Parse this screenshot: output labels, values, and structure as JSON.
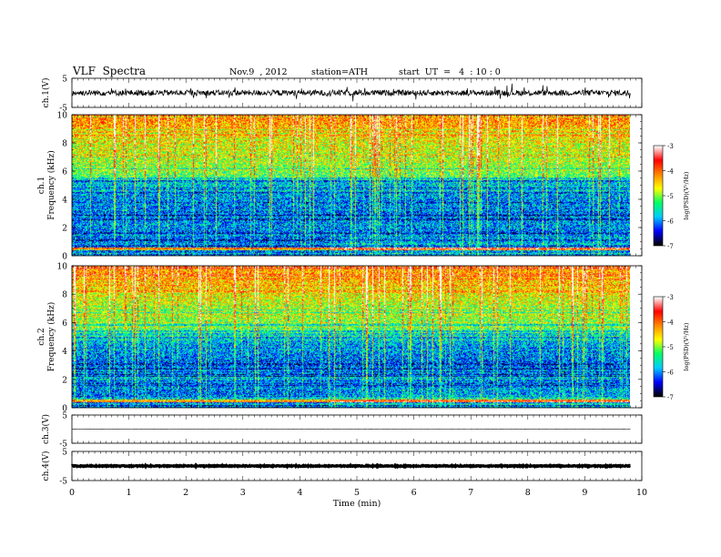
{
  "header": {
    "title": "VLF  Spectra",
    "date": "Nov.9  , 2012",
    "station": "station=ATH",
    "start": "start  UT  =   4  : 10 : 0"
  },
  "chart_data": [
    {
      "type": "line",
      "panel": "ch1-waveform",
      "ylabel": "ch.1(V)",
      "yticks": [
        "5",
        "-5"
      ],
      "ylim": [
        -5,
        5
      ],
      "xlim": [
        0,
        10
      ],
      "data_end_min": 9.8,
      "baseline": 0,
      "noise_amplitude": 1
    },
    {
      "type": "heatmap",
      "panel": "ch1-spectrogram",
      "ylabel": "ch.1",
      "ylabel2": "Frequency  (kHz)",
      "yticks": [
        "0",
        "2",
        "4",
        "6",
        "8",
        "10"
      ],
      "ylim": [
        0,
        10
      ],
      "xlim": [
        0,
        10
      ],
      "data_end_min": 9.8,
      "colorbar": {
        "label": "log(PSD)(V²/Hz)",
        "ticks": [
          "-3",
          "-4",
          "-5",
          "-6",
          "-7"
        ],
        "range": [
          -7,
          -3
        ],
        "colors": [
          "#000000",
          "#0000ff",
          "#00ccff",
          "#00ff66",
          "#ffff00",
          "#ff8800",
          "#ff0000",
          "#ffffff"
        ]
      }
    },
    {
      "type": "heatmap",
      "panel": "ch2-spectrogram",
      "ylabel": "ch.2",
      "ylabel2": "Frequency  (kHz)",
      "yticks": [
        "0",
        "2",
        "4",
        "6",
        "8",
        "10"
      ],
      "ylim": [
        0,
        10
      ],
      "xlim": [
        0,
        10
      ],
      "data_end_min": 9.8,
      "colorbar": {
        "label": "log(PSD)(V²/Hz)",
        "ticks": [
          "-3",
          "-4",
          "-5",
          "-6",
          "-7"
        ],
        "range": [
          -7,
          -3
        ],
        "colors": [
          "#000000",
          "#0000ff",
          "#00ccff",
          "#00ff66",
          "#ffff00",
          "#ff8800",
          "#ff0000",
          "#ffffff"
        ]
      }
    },
    {
      "type": "line",
      "panel": "ch3-waveform",
      "ylabel": "ch.3(V)",
      "yticks": [
        "5",
        "-5"
      ],
      "ylim": [
        -5,
        5
      ],
      "xlim": [
        0,
        10
      ],
      "data_end_min": 9.8,
      "baseline": 0,
      "noise_amplitude": 0.05
    },
    {
      "type": "line",
      "panel": "ch4-waveform",
      "ylabel": "ch.4(V)",
      "yticks": [
        "5",
        "-5"
      ],
      "ylim": [
        -5,
        5
      ],
      "xlim": [
        0,
        10
      ],
      "data_end_min": 9.8,
      "baseline": 0,
      "noise_amplitude": 0.15
    }
  ],
  "xaxis": {
    "label": "Time  (min)",
    "ticks": [
      "0",
      "1",
      "2",
      "3",
      "4",
      "5",
      "6",
      "7",
      "8",
      "9",
      "10"
    ],
    "range": [
      0,
      10
    ]
  }
}
